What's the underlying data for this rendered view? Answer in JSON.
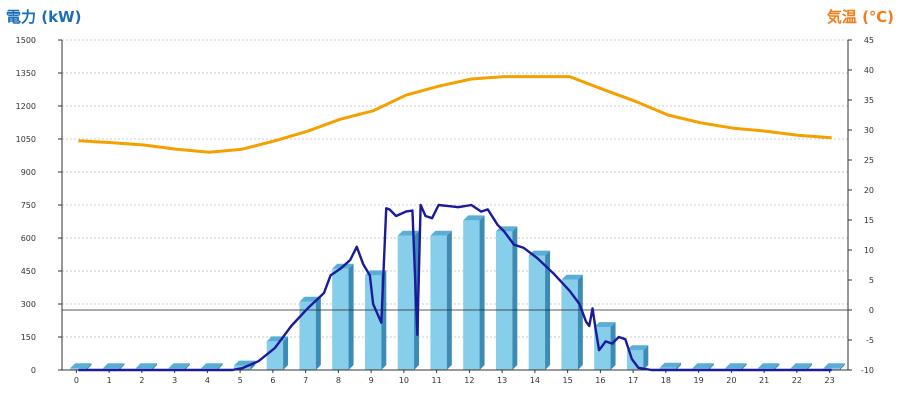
{
  "chart_data": {
    "type": "bar",
    "left_axis_title": "電力 (kW)",
    "right_axis_title": "気温 (℃)",
    "y_left": {
      "min": 0,
      "max": 1500,
      "ticks": [
        "0",
        "150",
        "300",
        "450",
        "600",
        "750",
        "900",
        "1050",
        "1200",
        "1350",
        "1500"
      ]
    },
    "y_right": {
      "min": -10,
      "max": 45,
      "ticks": [
        "-10",
        "-5",
        "0",
        "5",
        "10",
        "15",
        "20",
        "25",
        "30",
        "35",
        "40",
        "45"
      ]
    },
    "x_ticks": [
      "0",
      "1",
      "2",
      "3",
      "4",
      "5",
      "6",
      "7",
      "8",
      "9",
      "10",
      "11",
      "12",
      "13",
      "14",
      "15",
      "16",
      "17",
      "18",
      "19",
      "20",
      "21",
      "22",
      "23"
    ],
    "grid": true,
    "bars": {
      "axis": "left",
      "color": "#87ceeb",
      "values": [
        8,
        8,
        8,
        8,
        8,
        20,
        130,
        310,
        460,
        430,
        610,
        610,
        680,
        630,
        520,
        410,
        195,
        90,
        10,
        8,
        8,
        8,
        8,
        8
      ]
    },
    "power_line": {
      "axis": "left",
      "color": "#1a1a9a",
      "points": [
        [
          0,
          0
        ],
        [
          1,
          0
        ],
        [
          2,
          0
        ],
        [
          3,
          0
        ],
        [
          4,
          0
        ],
        [
          4.7,
          0
        ],
        [
          5,
          8
        ],
        [
          5.5,
          40
        ],
        [
          6,
          100
        ],
        [
          6.5,
          200
        ],
        [
          7,
          280
        ],
        [
          7.5,
          350
        ],
        [
          7.7,
          430
        ],
        [
          8,
          460
        ],
        [
          8.3,
          500
        ],
        [
          8.5,
          560
        ],
        [
          8.7,
          480
        ],
        [
          8.9,
          430
        ],
        [
          9,
          300
        ],
        [
          9.25,
          215
        ],
        [
          9.4,
          735
        ],
        [
          9.5,
          730
        ],
        [
          9.7,
          700
        ],
        [
          10,
          720
        ],
        [
          10.2,
          725
        ],
        [
          10.35,
          160
        ],
        [
          10.45,
          750
        ],
        [
          10.6,
          700
        ],
        [
          10.8,
          690
        ],
        [
          11,
          750
        ],
        [
          11.3,
          745
        ],
        [
          11.6,
          740
        ],
        [
          12,
          750
        ],
        [
          12.3,
          720
        ],
        [
          12.5,
          730
        ],
        [
          12.8,
          660
        ],
        [
          13,
          630
        ],
        [
          13.3,
          570
        ],
        [
          13.6,
          555
        ],
        [
          14,
          510
        ],
        [
          14.5,
          440
        ],
        [
          15,
          360
        ],
        [
          15.3,
          300
        ],
        [
          15.5,
          220
        ],
        [
          15.6,
          200
        ],
        [
          15.7,
          280
        ],
        [
          15.8,
          180
        ],
        [
          15.9,
          90
        ],
        [
          16.1,
          130
        ],
        [
          16.3,
          120
        ],
        [
          16.5,
          150
        ],
        [
          16.7,
          140
        ],
        [
          16.9,
          50
        ],
        [
          17.1,
          10
        ],
        [
          17.5,
          0
        ],
        [
          18,
          0
        ],
        [
          19,
          0
        ],
        [
          20,
          0
        ],
        [
          21,
          0
        ],
        [
          22,
          0
        ],
        [
          23,
          0
        ]
      ]
    },
    "temperature_line": {
      "axis": "right",
      "color": "#f5a000",
      "points": [
        [
          0,
          28.2
        ],
        [
          1,
          27.9
        ],
        [
          2,
          27.5
        ],
        [
          3,
          26.8
        ],
        [
          4,
          26.3
        ],
        [
          5,
          26.8
        ],
        [
          6,
          28.2
        ],
        [
          7,
          29.8
        ],
        [
          8,
          31.8
        ],
        [
          9,
          33.2
        ],
        [
          10,
          35.8
        ],
        [
          11,
          37.3
        ],
        [
          12,
          38.5
        ],
        [
          13,
          38.9
        ],
        [
          14,
          38.9
        ],
        [
          15,
          38.9
        ],
        [
          16,
          36.8
        ],
        [
          17,
          34.8
        ],
        [
          18,
          32.5
        ],
        [
          19,
          31.2
        ],
        [
          20,
          30.3
        ],
        [
          21,
          29.8
        ],
        [
          22,
          29.1
        ],
        [
          23,
          28.7
        ]
      ]
    }
  }
}
